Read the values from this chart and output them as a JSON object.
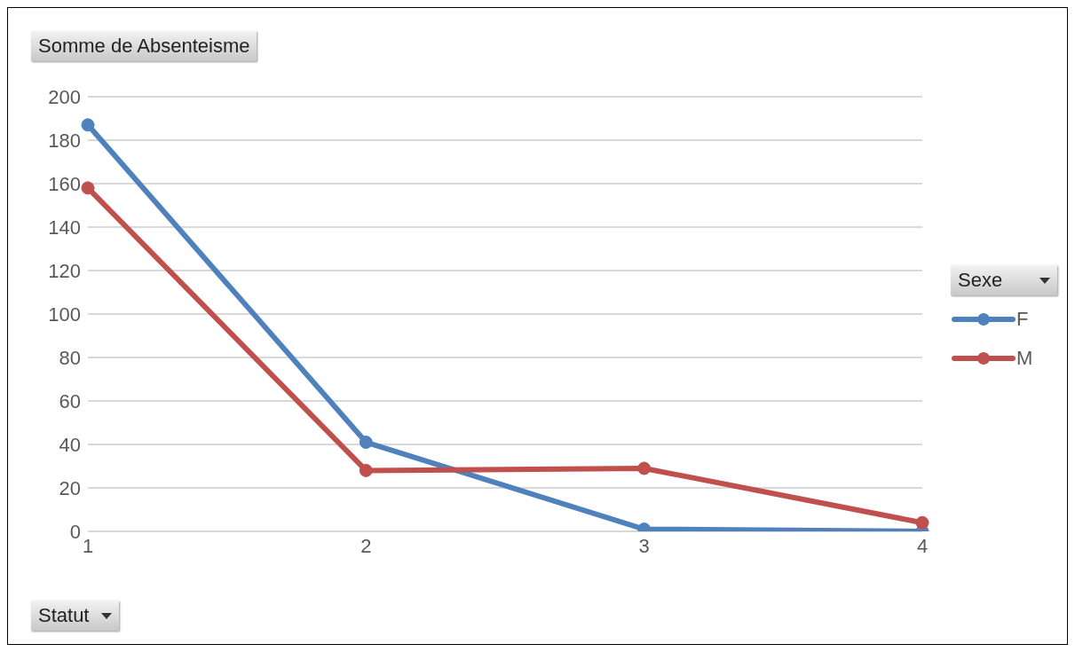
{
  "chart_data": {
    "type": "line",
    "title": "Somme de Absenteisme",
    "xlabel": "Statut",
    "legend_title": "Sexe",
    "categories": [
      "1",
      "2",
      "3",
      "4"
    ],
    "series": [
      {
        "name": "F",
        "color": "#4f81bd",
        "values": [
          187,
          41,
          1,
          0
        ]
      },
      {
        "name": "M",
        "color": "#c0504d",
        "values": [
          158,
          28,
          29,
          4
        ]
      }
    ],
    "ylim": [
      0,
      200
    ],
    "yticks": [
      0,
      20,
      40,
      60,
      80,
      100,
      120,
      140,
      160,
      180,
      200
    ],
    "grid": "y",
    "legend": "right",
    "marker": "circle",
    "line_style": "solid"
  }
}
